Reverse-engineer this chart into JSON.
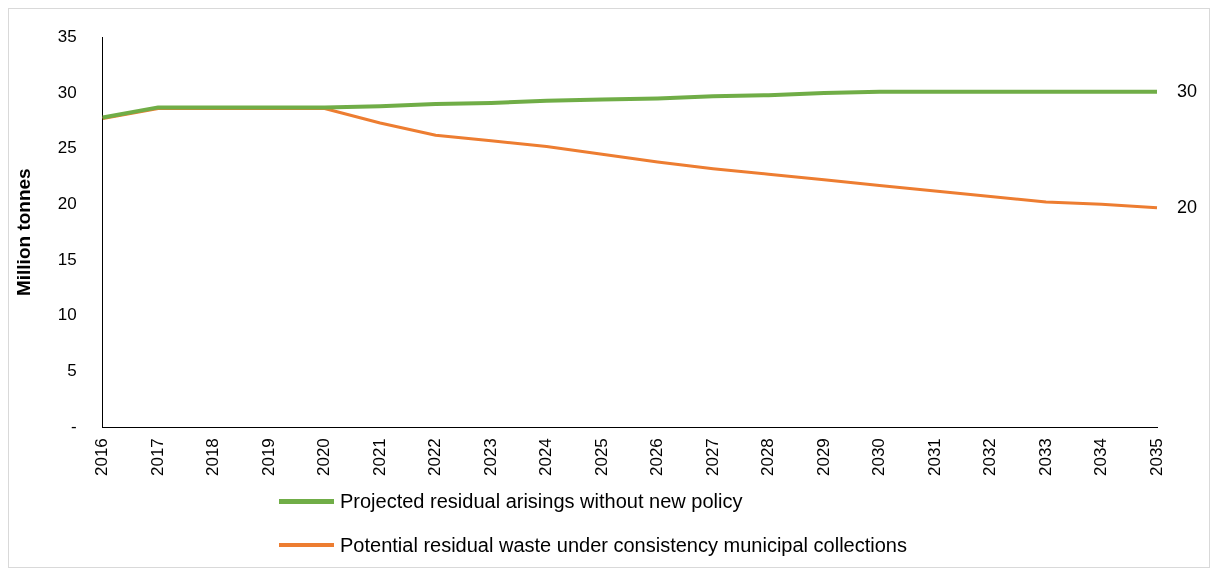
{
  "chart_data": {
    "type": "line",
    "ylabel": "Million tonnes",
    "categories": [
      "2016",
      "2017",
      "2018",
      "2019",
      "2020",
      "2021",
      "2022",
      "2023",
      "2024",
      "2025",
      "2026",
      "2027",
      "2028",
      "2029",
      "2030",
      "2031",
      "2032",
      "2033",
      "2034",
      "2035"
    ],
    "ylim": [
      0,
      35
    ],
    "yticks": [
      {
        "value": 0,
        "label": "-"
      },
      5,
      10,
      15,
      20,
      25,
      30,
      35
    ],
    "grid": false,
    "legend": "bottom",
    "marker": "none",
    "series": [
      {
        "name": "Projected residual arisings without new policy",
        "color": "#70ad47",
        "values": [
          27.8,
          28.7,
          28.7,
          28.7,
          28.7,
          28.8,
          29.0,
          29.1,
          29.3,
          29.4,
          29.5,
          29.7,
          29.8,
          30.0,
          30.1,
          30.1,
          30.1,
          30.1,
          30.1,
          30.1
        ],
        "value_labels": [
          null,
          null,
          null,
          null,
          null,
          null,
          null,
          null,
          null,
          null,
          null,
          null,
          null,
          null,
          null,
          null,
          null,
          null,
          null,
          "30"
        ]
      },
      {
        "name": "Potential residual waste under consistency municipal collections",
        "color": "#ed7d31",
        "values": [
          27.7,
          28.6,
          28.6,
          28.6,
          28.6,
          27.3,
          26.2,
          25.7,
          25.2,
          24.5,
          23.8,
          23.2,
          22.7,
          22.2,
          21.7,
          21.2,
          20.7,
          20.2,
          20.0,
          19.7
        ],
        "value_labels": [
          null,
          null,
          null,
          null,
          null,
          null,
          null,
          null,
          null,
          null,
          null,
          null,
          null,
          null,
          null,
          null,
          null,
          null,
          null,
          "20"
        ]
      }
    ]
  }
}
